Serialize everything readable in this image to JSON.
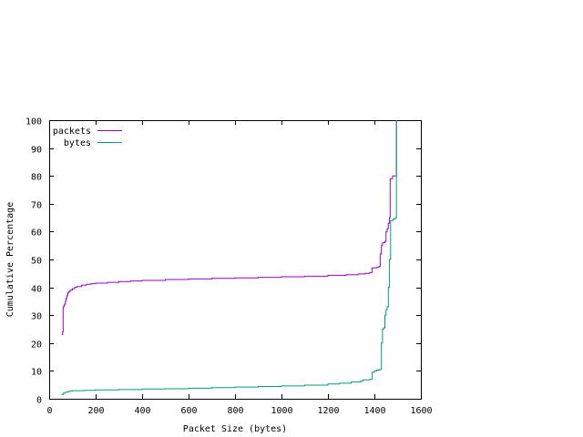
{
  "chart_data": {
    "type": "line",
    "title": "",
    "xlabel": "Packet Size (bytes)",
    "ylabel": "Cumulative Percentage",
    "xlim": [
      0,
      1600
    ],
    "ylim": [
      0,
      100
    ],
    "xticks": [
      0,
      200,
      400,
      600,
      800,
      1000,
      1200,
      1400,
      1600
    ],
    "yticks": [
      0,
      10,
      20,
      30,
      40,
      50,
      60,
      70,
      80,
      90,
      100
    ],
    "grid": false,
    "legend_position": "top-left",
    "series": [
      {
        "name": "packets",
        "color": "#9400d3",
        "points": [
          [
            54,
            23
          ],
          [
            58,
            24
          ],
          [
            60,
            33
          ],
          [
            64,
            33.5
          ],
          [
            66,
            34
          ],
          [
            70,
            35
          ],
          [
            72,
            36
          ],
          [
            76,
            37
          ],
          [
            80,
            38
          ],
          [
            84,
            38.5
          ],
          [
            90,
            39
          ],
          [
            100,
            39.5
          ],
          [
            110,
            40
          ],
          [
            120,
            40.3
          ],
          [
            140,
            40.8
          ],
          [
            160,
            41.1
          ],
          [
            180,
            41.3
          ],
          [
            200,
            41.5
          ],
          [
            250,
            41.8
          ],
          [
            300,
            42.1
          ],
          [
            350,
            42.3
          ],
          [
            400,
            42.5
          ],
          [
            500,
            42.8
          ],
          [
            600,
            43
          ],
          [
            700,
            43.2
          ],
          [
            800,
            43.4
          ],
          [
            900,
            43.6
          ],
          [
            1000,
            43.8
          ],
          [
            1100,
            44
          ],
          [
            1200,
            44.3
          ],
          [
            1280,
            44.5
          ],
          [
            1330,
            44.8
          ],
          [
            1360,
            45
          ],
          [
            1380,
            45.3
          ],
          [
            1390,
            47
          ],
          [
            1410,
            47.2
          ],
          [
            1420,
            47.5
          ],
          [
            1425,
            52
          ],
          [
            1430,
            55
          ],
          [
            1435,
            56
          ],
          [
            1445,
            56.5
          ],
          [
            1450,
            60
          ],
          [
            1455,
            61
          ],
          [
            1460,
            63
          ],
          [
            1465,
            65
          ],
          [
            1468,
            79
          ],
          [
            1478,
            80
          ],
          [
            1490,
            80
          ],
          [
            1495,
            100
          ]
        ]
      },
      {
        "name": "bytes",
        "color": "#009e73",
        "points": [
          [
            54,
            1.5
          ],
          [
            60,
            2
          ],
          [
            70,
            2.4
          ],
          [
            80,
            2.6
          ],
          [
            90,
            2.8
          ],
          [
            100,
            2.9
          ],
          [
            150,
            3
          ],
          [
            200,
            3.2
          ],
          [
            300,
            3.3
          ],
          [
            400,
            3.5
          ],
          [
            500,
            3.6
          ],
          [
            600,
            3.8
          ],
          [
            700,
            4
          ],
          [
            800,
            4.2
          ],
          [
            900,
            4.4
          ],
          [
            1000,
            4.6
          ],
          [
            1100,
            4.9
          ],
          [
            1200,
            5.3
          ],
          [
            1250,
            5.6
          ],
          [
            1300,
            6
          ],
          [
            1340,
            6.3
          ],
          [
            1350,
            6.8
          ],
          [
            1380,
            7
          ],
          [
            1390,
            9.5
          ],
          [
            1400,
            10
          ],
          [
            1410,
            10.3
          ],
          [
            1420,
            10.5
          ],
          [
            1430,
            20
          ],
          [
            1435,
            25
          ],
          [
            1440,
            25.5
          ],
          [
            1445,
            30
          ],
          [
            1450,
            32
          ],
          [
            1455,
            33
          ],
          [
            1460,
            40
          ],
          [
            1465,
            50
          ],
          [
            1470,
            64
          ],
          [
            1480,
            64.5
          ],
          [
            1490,
            65
          ],
          [
            1495,
            100
          ]
        ]
      }
    ]
  }
}
